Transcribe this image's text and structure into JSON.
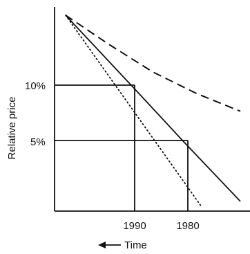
{
  "chart_data": {
    "type": "line",
    "title": "",
    "xlabel": "Time",
    "ylabel": "Relative price",
    "x_direction_note": "arrow points left",
    "x_ticks": [
      "1990",
      "1980"
    ],
    "y_ticks": [
      "10%",
      "5%"
    ],
    "grid": false,
    "legend": "none",
    "series": [
      {
        "style": "solid",
        "points": [
          [
            0.0,
            1.0
          ],
          [
            0.42,
            0.6
          ],
          [
            0.68,
            0.35
          ],
          [
            1.0,
            0.05
          ]
        ]
      },
      {
        "style": "dashed",
        "points": [
          [
            0.0,
            1.0
          ],
          [
            0.25,
            0.85
          ],
          [
            0.5,
            0.71
          ],
          [
            0.75,
            0.6
          ],
          [
            1.0,
            0.51
          ]
        ]
      },
      {
        "style": "dotted",
        "points": [
          [
            0.0,
            1.0
          ],
          [
            0.78,
            0.02
          ]
        ]
      }
    ],
    "reference_lines": [
      {
        "label": "10%",
        "year": "1990"
      },
      {
        "label": "5%",
        "year": "1980"
      }
    ]
  }
}
